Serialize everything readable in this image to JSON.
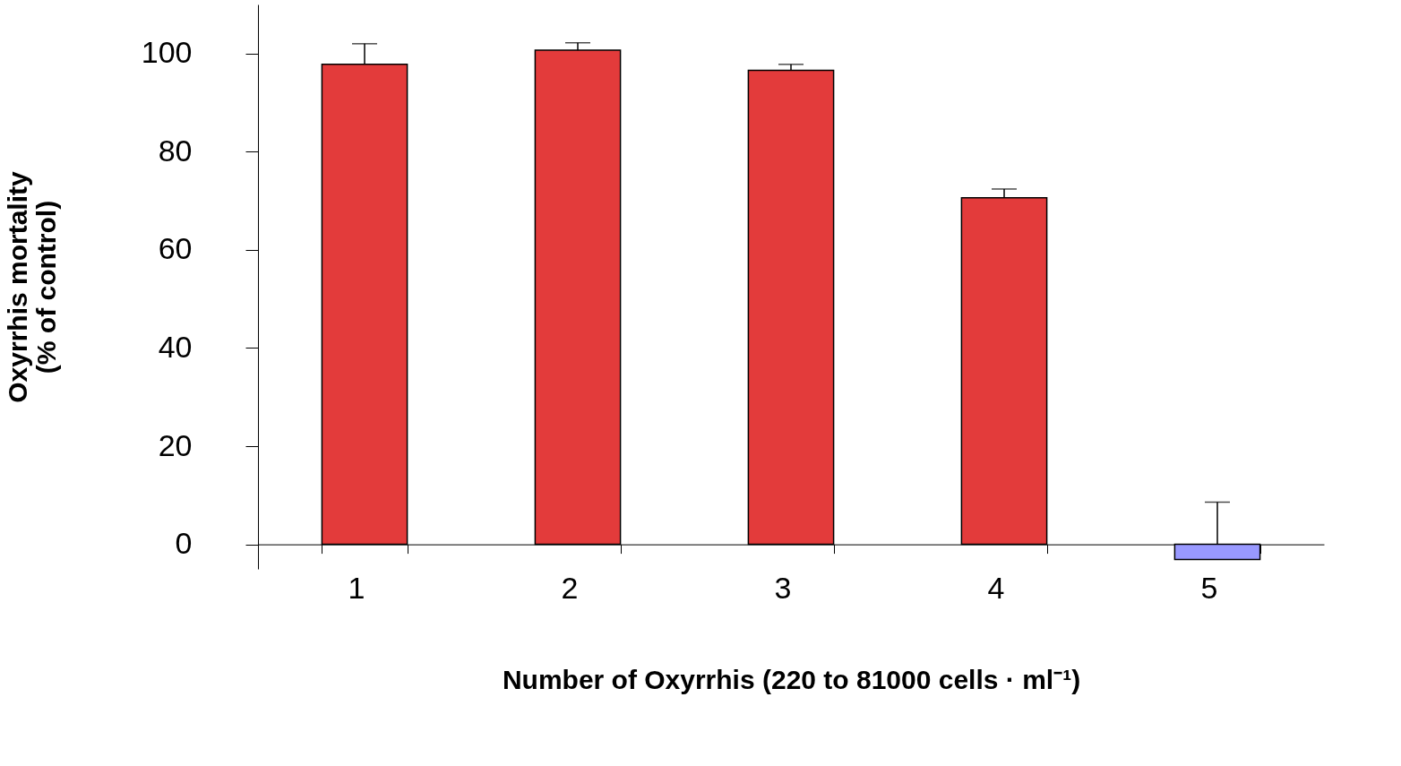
{
  "chart_data": {
    "type": "bar",
    "xlabel": "Number of Oxyrrhis (220 to 81000 cells · ml⁻¹)",
    "ylabel": "Oxyrrhis mortality\n(% of control)",
    "categories": [
      "1",
      "2",
      "3",
      "4",
      "5"
    ],
    "values": [
      97.8,
      100.7,
      96.6,
      70.6,
      -3.1
    ],
    "colors": [
      "#e33b3b",
      "#e33b3b",
      "#e33b3b",
      "#e33b3b",
      "#9999ff"
    ],
    "errors": [
      [
        97.8,
        102.0
      ],
      [
        100.7,
        102.2
      ],
      [
        96.6,
        97.8
      ],
      [
        70.6,
        72.4
      ],
      [
        -3.1,
        8.6
      ]
    ],
    "ylim": [
      -5,
      110
    ],
    "yticks": [
      0,
      20,
      40,
      60,
      80,
      100
    ],
    "grid": false
  }
}
